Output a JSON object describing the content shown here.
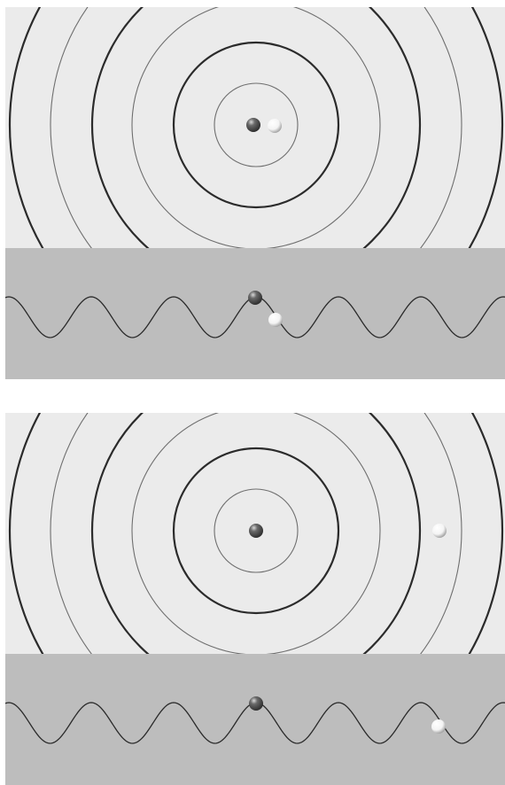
{
  "colors": {
    "plane": "#ebebeb",
    "profile_band": "#bdbdbd",
    "thick_ring": "#2b2b2b",
    "thin_ring": "#6e6e6e",
    "wave_line": "#2a2a2a",
    "dark_ball": "#2f2f2f",
    "light_ball": "#f4f4f4"
  },
  "icons": {
    "dark_ball": "dark-ball-icon",
    "light_ball": "light-ball-icon"
  },
  "panels": [
    {
      "name": "panel-top",
      "ring_style": [
        "thin",
        "thick",
        "thin",
        "thick",
        "thin",
        "thick"
      ]
    },
    {
      "name": "panel-bottom",
      "ring_style": [
        "thin",
        "thick",
        "thin",
        "thick",
        "thin",
        "thick"
      ]
    }
  ]
}
